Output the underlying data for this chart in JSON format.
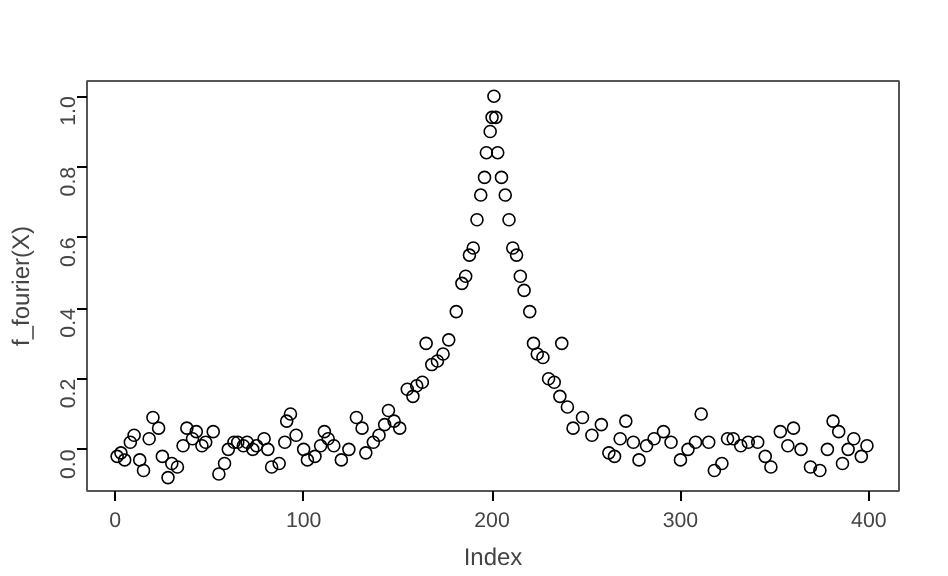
{
  "chart_data": {
    "type": "scatter",
    "xlabel": "Index",
    "ylabel": "f_fourier(X)",
    "marker": "circle",
    "grid": false,
    "xlim": [
      -15,
      416
    ],
    "ylim": [
      -0.118,
      1.043
    ],
    "xticks": [
      0,
      100,
      200,
      300,
      400
    ],
    "yticks": [
      {
        "value": 0,
        "label": "0.0"
      },
      0.2,
      0.4,
      0.6,
      0.8,
      {
        "value": 1,
        "label": "1.0"
      }
    ],
    "series": [
      {
        "color": "#000000",
        "x": [
          1,
          3,
          5,
          8,
          10,
          13,
          15,
          18,
          20,
          23,
          25,
          28,
          30,
          33,
          36,
          38,
          41,
          43,
          46,
          48,
          52,
          55,
          58,
          60,
          63,
          65,
          68,
          70,
          73,
          75,
          79,
          81,
          83,
          87,
          90,
          91,
          93,
          96,
          100,
          102,
          106,
          109,
          111,
          113,
          116,
          120,
          124,
          128,
          131,
          133,
          137,
          140,
          143,
          145,
          148,
          151,
          155,
          158,
          160,
          163,
          165,
          168,
          171,
          174,
          177,
          181,
          184,
          186,
          188,
          190,
          192,
          194,
          196,
          197,
          199,
          200,
          201,
          202,
          203,
          205,
          207,
          209,
          211,
          213,
          215,
          217,
          220,
          222,
          224,
          227,
          230,
          233,
          236,
          237,
          240,
          243,
          248,
          253,
          258,
          262,
          265,
          268,
          271,
          275,
          278,
          282,
          286,
          291,
          295,
          300,
          304,
          308,
          311,
          315,
          318,
          322,
          325,
          328,
          332,
          336,
          341,
          345,
          348,
          353,
          357,
          360,
          364,
          369,
          374,
          378,
          381,
          384,
          386,
          389,
          392,
          396,
          399
        ],
        "values": [
          -0.02,
          -0.01,
          -0.03,
          0.02,
          0.04,
          -0.03,
          -0.06,
          0.03,
          0.09,
          0.06,
          -0.02,
          -0.08,
          -0.04,
          -0.05,
          0.01,
          0.06,
          0.03,
          0.05,
          0.01,
          0.02,
          0.05,
          -0.07,
          -0.04,
          0.0,
          0.02,
          0.02,
          0.01,
          0.02,
          0.0,
          0.01,
          0.03,
          0.0,
          -0.05,
          -0.04,
          0.02,
          0.08,
          0.1,
          0.04,
          0.0,
          -0.03,
          -0.02,
          0.01,
          0.05,
          0.03,
          0.01,
          -0.03,
          0.0,
          0.09,
          0.06,
          -0.01,
          0.02,
          0.04,
          0.07,
          0.11,
          0.08,
          0.06,
          0.17,
          0.15,
          0.18,
          0.19,
          0.3,
          0.24,
          0.25,
          0.27,
          0.31,
          0.39,
          0.47,
          0.49,
          0.55,
          0.57,
          0.65,
          0.72,
          0.77,
          0.84,
          0.9,
          0.94,
          1.0,
          0.94,
          0.84,
          0.77,
          0.72,
          0.65,
          0.57,
          0.55,
          0.49,
          0.45,
          0.39,
          0.3,
          0.27,
          0.26,
          0.2,
          0.19,
          0.15,
          0.3,
          0.12,
          0.06,
          0.09,
          0.04,
          0.07,
          -0.01,
          -0.02,
          0.03,
          0.08,
          0.02,
          -0.03,
          0.01,
          0.03,
          0.05,
          0.02,
          -0.03,
          0.0,
          0.02,
          0.1,
          0.02,
          -0.06,
          -0.04,
          0.03,
          0.03,
          0.01,
          0.02,
          0.02,
          -0.02,
          -0.05,
          0.05,
          0.01,
          0.06,
          0.0,
          -0.05,
          -0.06,
          0.0,
          0.08,
          0.05,
          -0.04,
          0.0,
          0.03,
          -0.02,
          0.01
        ]
      }
    ]
  }
}
